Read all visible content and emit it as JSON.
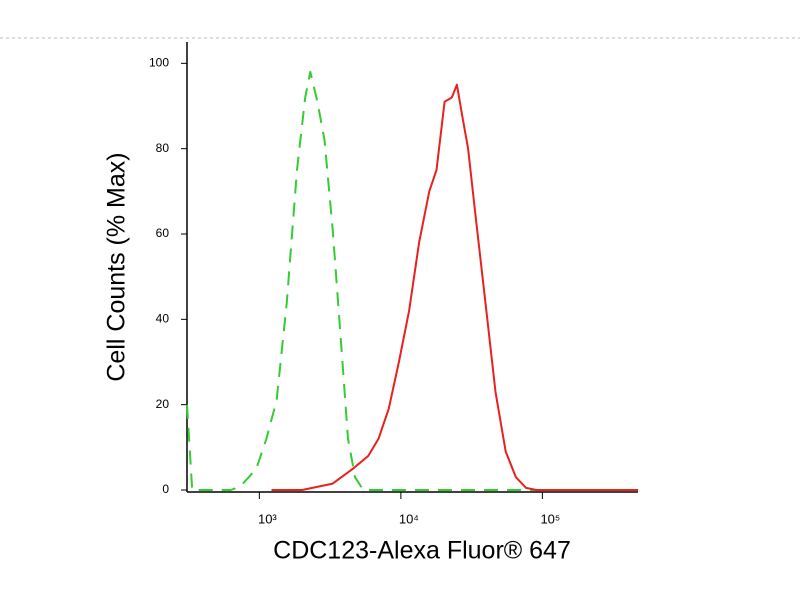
{
  "chart_data": {
    "type": "line",
    "xlabel": "CDC123-Alexa Fluor® 647",
    "ylabel": "Cell Counts (% Max)",
    "xscale": "log",
    "xlim": [
      308,
      474000
    ],
    "ylim": [
      0,
      105
    ],
    "xticks": [
      {
        "value": 1000,
        "label": "10³"
      },
      {
        "value": 10000,
        "label": "10⁴"
      },
      {
        "value": 100000,
        "label": "10⁵"
      }
    ],
    "yticks": [
      0,
      20,
      40,
      60,
      80,
      100
    ],
    "series": [
      {
        "color": "#33cc33",
        "style": "dashed",
        "x": [
          308,
          335,
          630,
          743,
          951,
          1122,
          1324,
          1563,
          1845,
          2108,
          2291,
          2570,
          2884,
          3296,
          3767,
          4227,
          4745,
          5420,
          402000
        ],
        "values": [
          20,
          0,
          0,
          1,
          5,
          12,
          21,
          44,
          75,
          92,
          98,
          91,
          82,
          61,
          35,
          12,
          3,
          0,
          0
        ]
      },
      {
        "color": "#e8211e",
        "style": "solid",
        "x": [
          1219,
          2004,
          3296,
          4592,
          5888,
          6950,
          8204,
          9683,
          11430,
          13460,
          15890,
          17860,
          20370,
          22910,
          24890,
          27040,
          29850,
          33500,
          39540,
          46670,
          55080,
          65010,
          76740,
          90570,
          474000
        ],
        "values": [
          0,
          0,
          1.5,
          5,
          8,
          12,
          19,
          30,
          42,
          58,
          70,
          75,
          91,
          92,
          95,
          88,
          80,
          65,
          44,
          23,
          9,
          3,
          0.5,
          0,
          0
        ]
      }
    ]
  }
}
